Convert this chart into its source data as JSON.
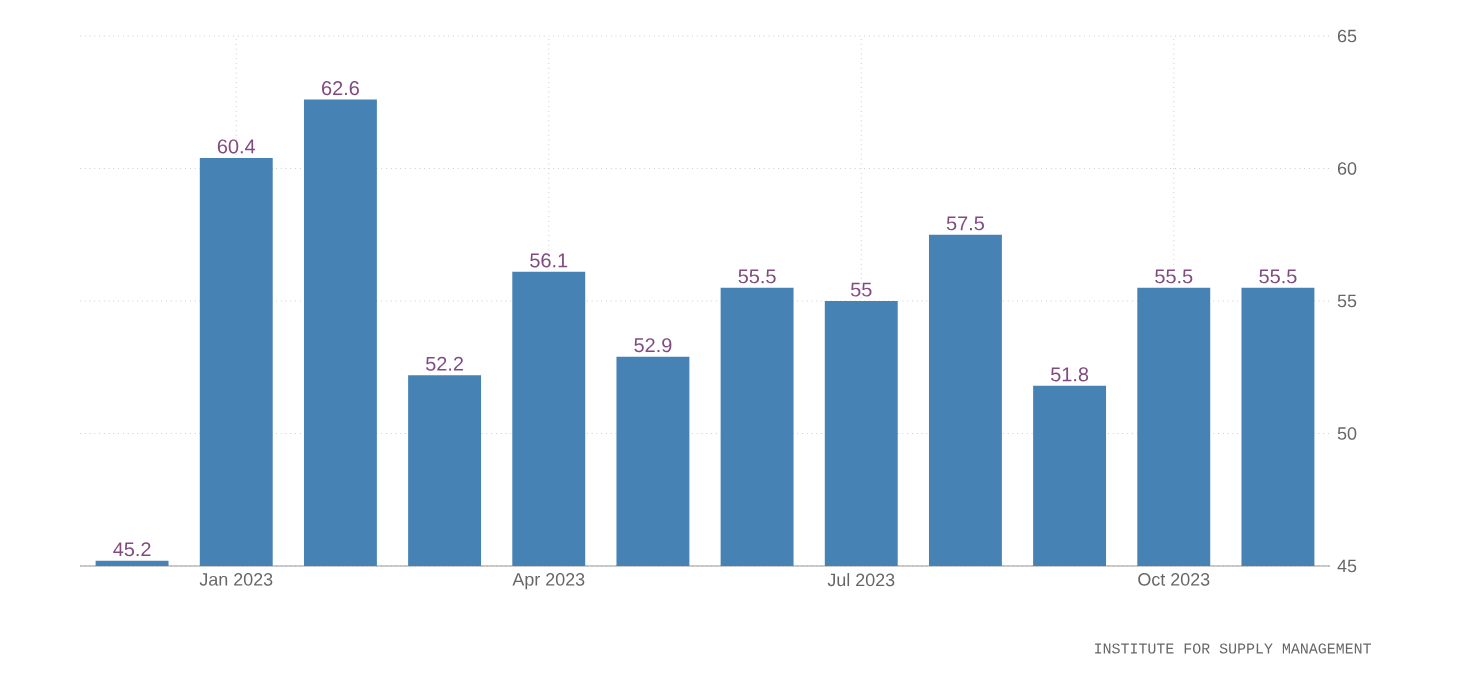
{
  "chart_data": {
    "type": "bar",
    "categories": [
      null,
      "Jan 2023",
      null,
      null,
      "Apr 2023",
      null,
      null,
      "Jul 2023",
      null,
      null,
      "Oct 2023",
      null
    ],
    "values": [
      45.2,
      60.4,
      62.6,
      52.2,
      56.1,
      52.9,
      55.5,
      55,
      57.5,
      51.8,
      55.5,
      55.5
    ],
    "color": "#4682b4",
    "ylim": [
      45,
      65
    ],
    "yticks": [
      45,
      50,
      55,
      60,
      65
    ],
    "grid": true,
    "data_labels": true,
    "annotations": [
      "INSTITUTE FOR SUPPLY MANAGEMENT"
    ]
  }
}
